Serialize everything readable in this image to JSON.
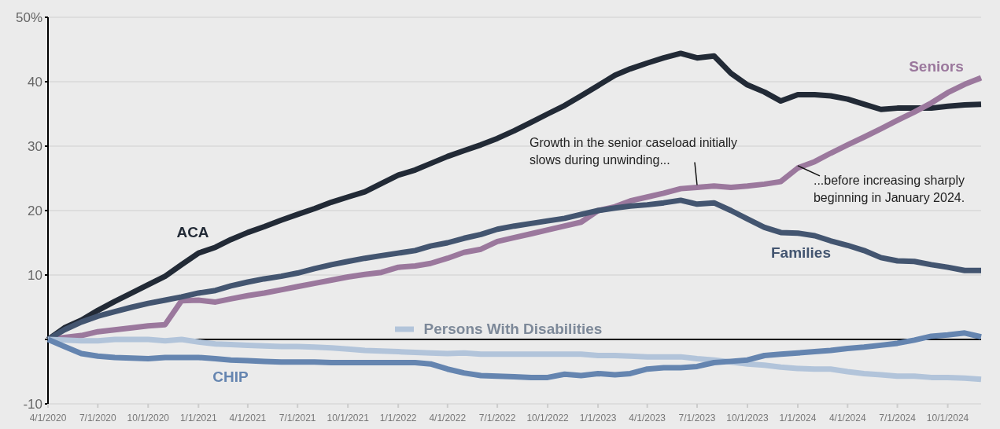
{
  "chart_data": {
    "type": "line",
    "x": [
      "2020-04-01",
      "2020-05-01",
      "2020-06-01",
      "2020-07-01",
      "2020-08-01",
      "2020-09-01",
      "2020-10-01",
      "2020-11-01",
      "2020-12-01",
      "2021-01-01",
      "2021-02-01",
      "2021-03-01",
      "2021-04-01",
      "2021-05-01",
      "2021-06-01",
      "2021-07-01",
      "2021-08-01",
      "2021-09-01",
      "2021-10-01",
      "2021-11-01",
      "2021-12-01",
      "2022-01-01",
      "2022-02-01",
      "2022-03-01",
      "2022-04-01",
      "2022-05-01",
      "2022-06-01",
      "2022-07-01",
      "2022-08-01",
      "2022-09-01",
      "2022-10-01",
      "2022-11-01",
      "2022-12-01",
      "2023-01-01",
      "2023-02-01",
      "2023-03-01",
      "2023-04-01",
      "2023-05-01",
      "2023-06-01",
      "2023-07-01",
      "2023-08-01",
      "2023-09-01",
      "2023-10-01",
      "2023-11-01",
      "2023-12-01",
      "2024-01-01",
      "2024-02-01",
      "2024-03-01",
      "2024-04-01",
      "2024-05-01",
      "2024-06-01",
      "2024-07-01",
      "2024-08-01",
      "2024-09-01",
      "2024-10-01",
      "2024-11-01",
      "2024-12-01"
    ],
    "series": [
      {
        "name": "ACA",
        "color": "#222a36",
        "values": [
          0,
          1.8,
          3,
          4.5,
          5.9,
          7.2,
          8.5,
          9.8,
          11.6,
          13.4,
          14.3,
          15.5,
          16.6,
          17.5,
          18.5,
          19.4,
          20.3,
          21.3,
          22.1,
          22.9,
          24.2,
          25.5,
          26.3,
          27.3,
          28.4,
          29.3,
          30.2,
          31.2,
          32.4,
          33.7,
          35,
          36.3,
          37.8,
          39.4,
          41,
          42,
          42.9,
          43.7,
          44.4,
          43.7,
          44,
          41.3,
          39.5,
          38.4,
          37,
          38,
          38,
          37.8,
          37.3,
          36.5,
          35.7,
          35.9,
          35.9,
          35.9,
          36.2,
          36.4,
          36.5
        ]
      },
      {
        "name": "Seniors",
        "color": "#9b789d",
        "values": [
          0,
          0.3,
          0.6,
          1.2,
          1.5,
          1.8,
          2.1,
          2.3,
          6,
          6.1,
          5.8,
          6.3,
          6.8,
          7.2,
          7.7,
          8.2,
          8.7,
          9.2,
          9.7,
          10.1,
          10.4,
          11.2,
          11.4,
          11.8,
          12.6,
          13.5,
          14,
          15.2,
          15.8,
          16.4,
          17,
          17.6,
          18.2,
          20,
          20.6,
          21.5,
          22.1,
          22.7,
          23.4,
          23.6,
          23.8,
          23.6,
          23.8,
          24.1,
          24.5,
          26.6,
          27.6,
          28.9,
          30.2,
          31.4,
          32.7,
          34,
          35.3,
          36.7,
          38.3,
          39.6,
          40.6
        ]
      },
      {
        "name": "Families",
        "color": "#435570",
        "values": [
          0,
          1.5,
          2.7,
          3.6,
          4.3,
          5,
          5.6,
          6.1,
          6.6,
          7.2,
          7.6,
          8.3,
          8.9,
          9.4,
          9.8,
          10.3,
          11,
          11.6,
          12.1,
          12.6,
          13,
          13.4,
          13.8,
          14.5,
          15,
          15.7,
          16.3,
          17.1,
          17.6,
          18,
          18.4,
          18.8,
          19.4,
          20,
          20.4,
          20.7,
          20.9,
          21.2,
          21.6,
          21,
          21.2,
          20,
          18.7,
          17.4,
          16.6,
          16.5,
          16.1,
          15.3,
          14.6,
          13.8,
          12.7,
          12.2,
          12.1,
          11.6,
          11.2,
          10.7,
          10.7
        ]
      },
      {
        "name": "Persons With Disabilities",
        "color": "#b2c4da",
        "values": [
          0,
          -0.1,
          -0.2,
          -0.2,
          0,
          0,
          0,
          -0.2,
          0,
          -0.4,
          -0.7,
          -0.8,
          -0.9,
          -1,
          -1.1,
          -1.1,
          -1.2,
          -1.3,
          -1.5,
          -1.7,
          -1.8,
          -1.9,
          -2,
          -2.1,
          -2.2,
          -2.1,
          -2.3,
          -2.3,
          -2.3,
          -2.3,
          -2.3,
          -2.3,
          -2.3,
          -2.5,
          -2.5,
          -2.6,
          -2.7,
          -2.7,
          -2.7,
          -3,
          -3.2,
          -3.5,
          -3.8,
          -4,
          -4.3,
          -4.5,
          -4.6,
          -4.6,
          -5,
          -5.3,
          -5.5,
          -5.7,
          -5.7,
          -5.9,
          -5.9,
          -6,
          -6.2
        ]
      },
      {
        "name": "CHIP",
        "color": "#6585b0",
        "values": [
          0,
          -1.1,
          -2.2,
          -2.6,
          -2.8,
          -2.9,
          -3,
          -2.8,
          -2.8,
          -2.8,
          -3,
          -3.2,
          -3.3,
          -3.4,
          -3.5,
          -3.5,
          -3.5,
          -3.6,
          -3.6,
          -3.6,
          -3.6,
          -3.6,
          -3.6,
          -3.8,
          -4.6,
          -5.2,
          -5.6,
          -5.7,
          -5.8,
          -5.9,
          -5.9,
          -5.4,
          -5.6,
          -5.3,
          -5.5,
          -5.3,
          -4.6,
          -4.4,
          -4.4,
          -4.2,
          -3.6,
          -3.4,
          -3.2,
          -2.5,
          -2.3,
          -2.1,
          -1.9,
          -1.7,
          -1.4,
          -1.2,
          -0.9,
          -0.6,
          -0.1,
          0.5,
          0.7,
          1,
          0.4
        ]
      }
    ],
    "xlim": [
      "2020-04-01",
      "2024-12-01"
    ],
    "xticks": [
      {
        "value": "2020-04-01",
        "label": "4/1/2020"
      },
      {
        "value": "2020-07-01",
        "label": "7/1/2020"
      },
      {
        "value": "2020-10-01",
        "label": "10/1/2020"
      },
      {
        "value": "2021-01-01",
        "label": "1/1/2021"
      },
      {
        "value": "2021-04-01",
        "label": "4/1/2021"
      },
      {
        "value": "2021-07-01",
        "label": "7/1/2021"
      },
      {
        "value": "2021-10-01",
        "label": "10/1/2021"
      },
      {
        "value": "2022-01-01",
        "label": "1/1/2022"
      },
      {
        "value": "2022-04-01",
        "label": "4/1/2022"
      },
      {
        "value": "2022-07-01",
        "label": "7/1/2022"
      },
      {
        "value": "2022-10-01",
        "label": "10/1/2022"
      },
      {
        "value": "2023-01-01",
        "label": "1/1/2023"
      },
      {
        "value": "2023-04-01",
        "label": "4/1/2023"
      },
      {
        "value": "2023-07-01",
        "label": "7/1/2023"
      },
      {
        "value": "2023-10-01",
        "label": "10/1/2023"
      },
      {
        "value": "2024-01-01",
        "label": "1/1/2024"
      },
      {
        "value": "2024-04-01",
        "label": "4/1/2024"
      },
      {
        "value": "2024-07-01",
        "label": "7/1/2024"
      },
      {
        "value": "2024-10-01",
        "label": "10/1/2024"
      }
    ],
    "ylim": [
      -10,
      50
    ],
    "yticks": [
      -10,
      {
        "value": 0,
        "label": null
      },
      10,
      20,
      30,
      40,
      {
        "value": 50,
        "label": "50%"
      }
    ],
    "grid": "y",
    "marker": "none",
    "line_style": "solid",
    "ref_lines": [
      {
        "axis": "y",
        "value": 0,
        "color": "#000000"
      }
    ],
    "annotations": [
      {
        "text": "Growth in the senior caseload initially\nslows during unwinding...",
        "x": "2023-07-01",
        "y": 23.6
      },
      {
        "text": "...before increasing sharply\nbeginning in January 2024.",
        "x": "2024-01-01",
        "y": 26.6
      }
    ]
  }
}
